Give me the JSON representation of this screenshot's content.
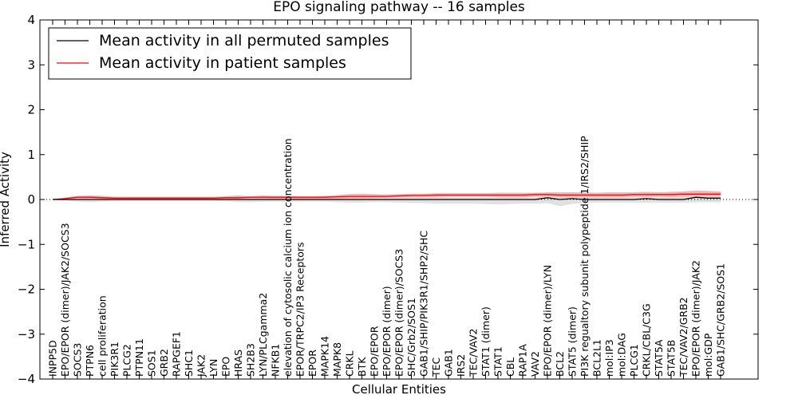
{
  "chart_data": {
    "type": "line",
    "title": "EPO signaling pathway -- 16 samples",
    "xlabel": "Cellular Entities",
    "ylabel": "Inferred Activity",
    "ylim": [
      -4,
      4
    ],
    "yticks": [
      {
        "value": -4,
        "label": "−4"
      },
      {
        "value": -3,
        "label": "−3"
      },
      {
        "value": -2,
        "label": "−2"
      },
      {
        "value": -1,
        "label": "−1"
      },
      {
        "value": 0,
        "label": "0"
      },
      {
        "value": 1,
        "label": "1"
      },
      {
        "value": 2,
        "label": "2"
      },
      {
        "value": 3,
        "label": "3"
      },
      {
        "value": 4,
        "label": "4"
      }
    ],
    "legend": {
      "location": "top-left",
      "entries": [
        {
          "label": "Mean activity in all permuted samples",
          "color": "#000000"
        },
        {
          "label": "Mean activity in patient samples",
          "color": "#ff0000"
        }
      ]
    },
    "categories": [
      "INPP5D",
      "EPO/EPOR (dimer)/JAK2/SOCS3",
      "SOCS3",
      "PTPN6",
      "cell proliferation",
      "PIK3R1",
      "PLCG2",
      "PTPN11",
      "SOS1",
      "GRB2",
      "RAPGEF1",
      "SHC1",
      "JAK2",
      "LYN",
      "EPO",
      "HRAS",
      "SH2B3",
      "LYN/PLCgamma2",
      "NFKB1",
      "elevation of cytosolic calcium ion concentration",
      "EPOR/TRPC2/IP3 Receptors",
      "EPOR",
      "MAPK14",
      "MAPK8",
      "CRKL",
      "BTK",
      "EPO/EPOR",
      "EPO/EPOR (dimer)",
      "EPO/EPOR (dimer)/SOCS3",
      "SHC/Grb2/SOS1",
      "GAB1/SHIP/PIK3R1/SHP2/SHC",
      "TEC",
      "GAB1",
      "IRS2",
      "TEC/VAV2",
      "STAT1 (dimer)",
      "STAT1",
      "CBL",
      "RAP1A",
      "VAV2",
      "EPO/EPOR (dimer)/LYN",
      "BCL2",
      "STAT5 (dimer)",
      "PI3K regualtory subunit polypeptide 1/IRS2/SHIP",
      "BCL2L1",
      "mol:IP3",
      "mol:DAG",
      "PLCG1",
      "CRKL/CBL/C3G",
      "STAT5A",
      "STAT5B",
      "TEC/VAV2/GRB2",
      "EPO/EPOR (dimer)/JAK2",
      "mol:GDP",
      "GAB1/SHC/GRB2/SOS1"
    ],
    "series": [
      {
        "name": "Mean activity in all permuted samples",
        "color": "#000000",
        "values": [
          0.0,
          0.0,
          0.0,
          0.0,
          0.0,
          0.0,
          0.0,
          0.0,
          0.0,
          0.0,
          0.0,
          0.0,
          0.0,
          0.0,
          0.0,
          0.0,
          0.0,
          0.0,
          0.0,
          0.0,
          0.0,
          0.0,
          0.0,
          0.0,
          0.0,
          0.0,
          0.0,
          0.0,
          0.0,
          0.0,
          0.0,
          0.0,
          0.0,
          0.0,
          0.0,
          0.0,
          0.0,
          0.0,
          0.0,
          0.0,
          0.04,
          0.0,
          0.02,
          0.0,
          0.0,
          0.0,
          0.0,
          0.0,
          0.02,
          0.0,
          0.0,
          0.0,
          0.05,
          0.03,
          0.03
        ]
      },
      {
        "name": "Mean activity in patient samples",
        "color": "#ff0000",
        "values": [
          0.0,
          0.02,
          0.05,
          0.05,
          0.04,
          0.03,
          0.03,
          0.03,
          0.03,
          0.03,
          0.03,
          0.03,
          0.03,
          0.03,
          0.04,
          0.04,
          0.05,
          0.05,
          0.05,
          0.05,
          0.05,
          0.05,
          0.05,
          0.06,
          0.07,
          0.07,
          0.07,
          0.07,
          0.08,
          0.09,
          0.09,
          0.1,
          0.1,
          0.1,
          0.1,
          0.1,
          0.1,
          0.1,
          0.1,
          0.11,
          0.11,
          0.1,
          0.1,
          0.1,
          0.1,
          0.1,
          0.1,
          0.11,
          0.11,
          0.11,
          0.11,
          0.12,
          0.12,
          0.12,
          0.12
        ]
      }
    ],
    "bands": [
      {
        "name": "patient spread",
        "color": "#ff9999",
        "upper": [
          0.0,
          0.04,
          0.08,
          0.09,
          0.08,
          0.06,
          0.06,
          0.06,
          0.06,
          0.06,
          0.06,
          0.06,
          0.06,
          0.06,
          0.07,
          0.09,
          0.07,
          0.09,
          0.08,
          0.08,
          0.07,
          0.07,
          0.08,
          0.1,
          0.12,
          0.13,
          0.12,
          0.11,
          0.12,
          0.13,
          0.13,
          0.14,
          0.14,
          0.14,
          0.14,
          0.14,
          0.15,
          0.15,
          0.15,
          0.15,
          0.16,
          0.16,
          0.16,
          0.16,
          0.15,
          0.16,
          0.16,
          0.16,
          0.17,
          0.16,
          0.17,
          0.18,
          0.2,
          0.19,
          0.18
        ],
        "lower": [
          0.0,
          0.0,
          0.02,
          0.02,
          0.01,
          0.01,
          0.01,
          0.01,
          0.01,
          0.01,
          0.01,
          0.01,
          0.01,
          0.01,
          0.01,
          0.01,
          0.01,
          0.01,
          0.01,
          0.01,
          0.01,
          0.01,
          0.01,
          0.01,
          0.02,
          0.02,
          0.03,
          0.04,
          0.04,
          0.05,
          0.05,
          0.05,
          0.06,
          0.06,
          0.06,
          0.06,
          0.05,
          0.05,
          0.05,
          0.06,
          0.07,
          0.05,
          0.04,
          0.05,
          0.05,
          0.05,
          0.05,
          0.06,
          0.06,
          0.06,
          0.05,
          0.06,
          0.05,
          0.06,
          0.06
        ]
      },
      {
        "name": "permuted spread",
        "color": "#d9d9d9",
        "upper": [
          0.0,
          0.01,
          0.02,
          0.02,
          0.01,
          0.01,
          0.01,
          0.01,
          0.01,
          0.01,
          0.01,
          0.01,
          0.01,
          0.01,
          0.01,
          0.02,
          0.03,
          0.03,
          0.02,
          0.02,
          0.02,
          0.02,
          0.02,
          0.03,
          0.03,
          0.03,
          0.03,
          0.03,
          0.04,
          0.04,
          0.04,
          0.04,
          0.04,
          0.04,
          0.04,
          0.04,
          0.04,
          0.04,
          0.04,
          0.05,
          0.08,
          0.05,
          0.06,
          0.05,
          0.05,
          0.05,
          0.05,
          0.05,
          0.06,
          0.05,
          0.05,
          0.06,
          0.09,
          0.07,
          0.07
        ],
        "lower": [
          0.0,
          -0.02,
          -0.05,
          -0.06,
          -0.05,
          -0.03,
          -0.03,
          -0.03,
          -0.03,
          -0.03,
          -0.03,
          -0.03,
          -0.03,
          -0.03,
          -0.04,
          -0.06,
          -0.06,
          -0.05,
          -0.05,
          -0.05,
          -0.05,
          -0.05,
          -0.05,
          -0.06,
          -0.07,
          -0.07,
          -0.06,
          -0.06,
          -0.07,
          -0.08,
          -0.08,
          -0.09,
          -0.09,
          -0.09,
          -0.09,
          -0.1,
          -0.11,
          -0.1,
          -0.09,
          -0.09,
          -0.08,
          -0.15,
          -0.1,
          -0.08,
          -0.07,
          -0.07,
          -0.07,
          -0.07,
          -0.07,
          -0.07,
          -0.08,
          -0.07,
          -0.06,
          -0.06,
          -0.06
        ]
      }
    ],
    "zero_line": {
      "value": 0,
      "style": "dotted"
    },
    "grid": false
  }
}
